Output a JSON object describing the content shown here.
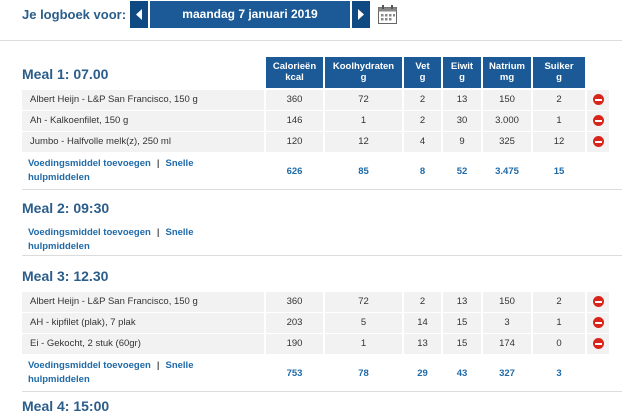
{
  "header": {
    "label": "Je logboek voor:",
    "date": "maandag 7 januari 2019"
  },
  "columns": [
    {
      "name": "Calorieën",
      "unit": "kcal"
    },
    {
      "name": "Koolhydraten",
      "unit": "g"
    },
    {
      "name": "Vet",
      "unit": "g"
    },
    {
      "name": "Eiwit",
      "unit": "g"
    },
    {
      "name": "Natrium",
      "unit": "mg"
    },
    {
      "name": "Suiker",
      "unit": "g"
    }
  ],
  "links": {
    "add": "Voedingsmiddel toevoegen",
    "separator": "|",
    "quick": "Snelle hulpmiddelen"
  },
  "meals": [
    {
      "title": "Meal 1: 07.00",
      "items": [
        {
          "name": "Albert Heijn - L&P San Francisco, 150 g",
          "values": [
            "360",
            "72",
            "2",
            "13",
            "150",
            "2"
          ]
        },
        {
          "name": "Ah - Kalkoenfilet, 150 g",
          "values": [
            "146",
            "1",
            "2",
            "30",
            "3.000",
            "1"
          ]
        },
        {
          "name": "Jumbo - Halfvolle melk(z), 250 ml",
          "values": [
            "120",
            "12",
            "4",
            "9",
            "325",
            "12"
          ]
        }
      ],
      "totals": [
        "626",
        "85",
        "8",
        "52",
        "3.475",
        "15"
      ]
    },
    {
      "title": "Meal 2: 09:30",
      "items": [],
      "totals": null
    },
    {
      "title": "Meal 3: 12.30",
      "items": [
        {
          "name": "Albert Heijn - L&P San Francisco, 150 g",
          "values": [
            "360",
            "72",
            "2",
            "13",
            "150",
            "2"
          ]
        },
        {
          "name": "AH - kipfilet (plak), 7 plak",
          "values": [
            "203",
            "5",
            "14",
            "15",
            "3",
            "1"
          ]
        },
        {
          "name": "Ei - Gekocht, 2 stuk (60gr)",
          "values": [
            "190",
            "1",
            "13",
            "15",
            "174",
            "0"
          ]
        }
      ],
      "totals": [
        "753",
        "78",
        "29",
        "43",
        "327",
        "3"
      ]
    },
    {
      "title": "Meal 4: 15:00",
      "items": [],
      "totals": null
    }
  ]
}
